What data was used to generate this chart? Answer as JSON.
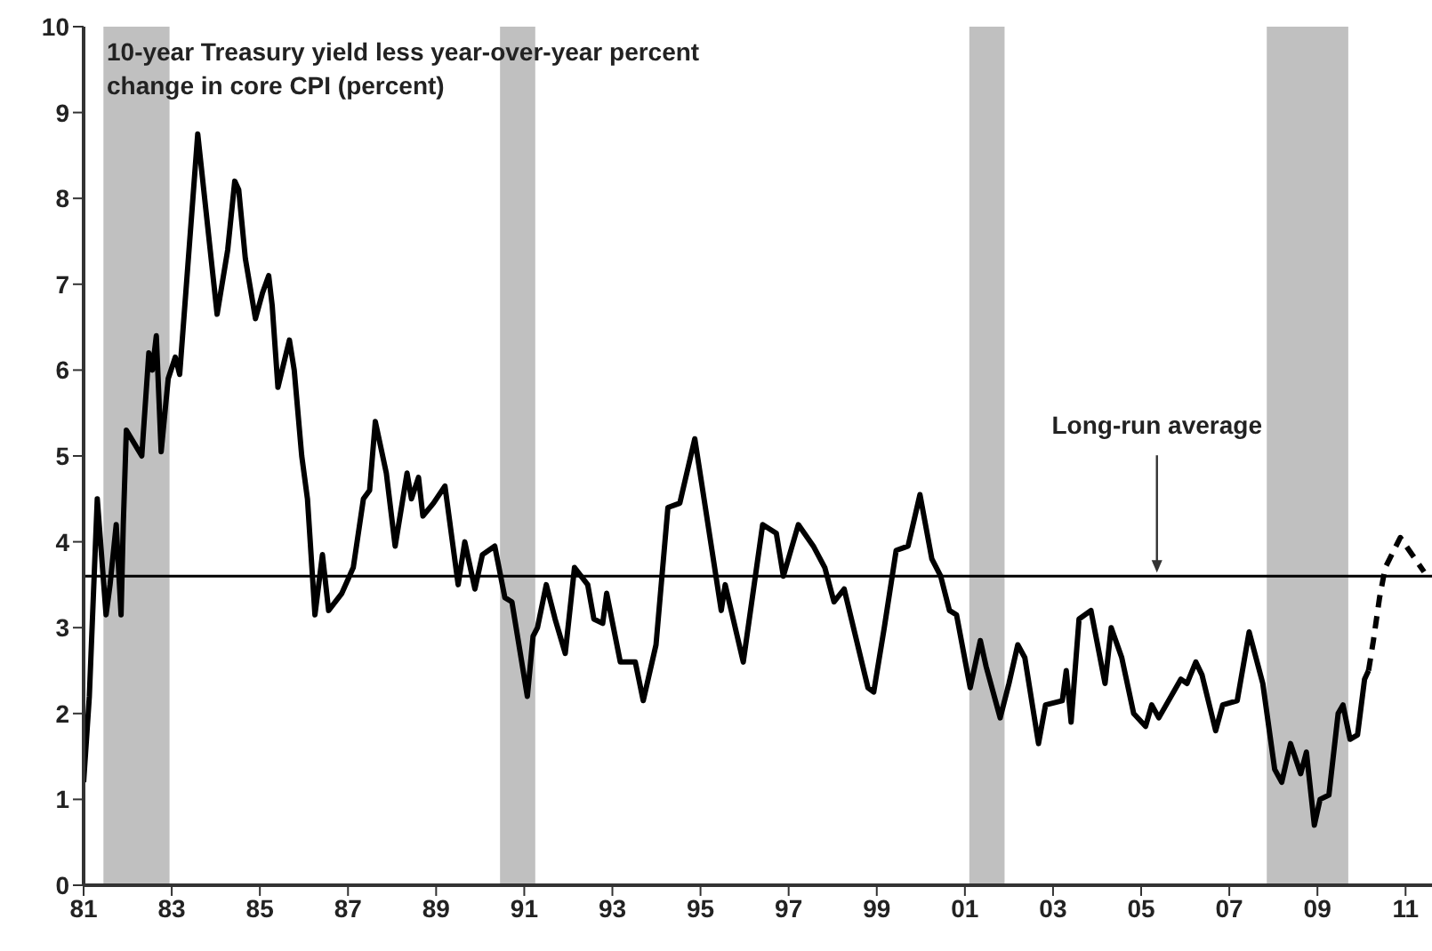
{
  "chart_data": {
    "type": "line",
    "title": "10-year Treasury yield less year-over-year percent change in core CPI (percent)",
    "xlim": [
      1981,
      2011.6
    ],
    "xticks": [
      {
        "value": 1981,
        "label": "81"
      },
      {
        "value": 1983,
        "label": "83"
      },
      {
        "value": 1985,
        "label": "85"
      },
      {
        "value": 1987,
        "label": "87"
      },
      {
        "value": 1989,
        "label": "89"
      },
      {
        "value": 1991,
        "label": "91"
      },
      {
        "value": 1993,
        "label": "93"
      },
      {
        "value": 1995,
        "label": "95"
      },
      {
        "value": 1997,
        "label": "97"
      },
      {
        "value": 1999,
        "label": "99"
      },
      {
        "value": 2001,
        "label": "01"
      },
      {
        "value": 2003,
        "label": "03"
      },
      {
        "value": 2005,
        "label": "05"
      },
      {
        "value": 2007,
        "label": "07"
      },
      {
        "value": 2009,
        "label": "09"
      },
      {
        "value": 2011,
        "label": "11"
      }
    ],
    "ylim": [
      0,
      10
    ],
    "yticks": [
      0,
      1,
      2,
      3,
      4,
      5,
      6,
      7,
      8,
      9,
      10
    ],
    "series": [
      {
        "color": "#000000",
        "line_style": "solid",
        "x": [
          1981.0,
          1981.13,
          1981.31,
          1981.51,
          1981.6,
          1981.74,
          1981.85,
          1981.9,
          1981.97,
          1982.32,
          1982.48,
          1982.56,
          1982.65,
          1982.76,
          1982.92,
          1983.08,
          1983.18,
          1983.59,
          1984.03,
          1984.27,
          1984.43,
          1984.52,
          1984.67,
          1984.9,
          1985.06,
          1985.2,
          1985.28,
          1985.41,
          1985.67,
          1985.78,
          1985.95,
          1986.08,
          1986.25,
          1986.42,
          1986.56,
          1986.86,
          1987.12,
          1987.35,
          1987.49,
          1987.62,
          1987.87,
          1988.07,
          1988.34,
          1988.44,
          1988.6,
          1988.7,
          1988.94,
          1989.2,
          1989.5,
          1989.65,
          1989.88,
          1990.05,
          1990.33,
          1990.56,
          1990.72,
          1991.07,
          1991.2,
          1991.3,
          1991.5,
          1991.7,
          1991.93,
          1992.14,
          1992.44,
          1992.58,
          1992.78,
          1992.87,
          1993.18,
          1993.52,
          1993.7,
          1993.99,
          1994.26,
          1994.53,
          1994.87,
          1995.47,
          1995.56,
          1995.97,
          1996.41,
          1996.72,
          1996.88,
          1997.22,
          1997.56,
          1997.82,
          1998.03,
          1998.26,
          1998.8,
          1998.93,
          1999.17,
          1999.44,
          1999.71,
          1999.98,
          2000.25,
          2000.45,
          2000.65,
          2000.81,
          2001.12,
          2001.35,
          2001.48,
          2001.8,
          2002.0,
          2002.2,
          2002.36,
          2002.67,
          2002.83,
          2003.21,
          2003.3,
          2003.41,
          2003.59,
          2003.86,
          2004.18,
          2004.32,
          2004.56,
          2004.83,
          2005.1,
          2005.24,
          2005.4,
          2005.9,
          2006.04,
          2006.24,
          2006.38,
          2006.69,
          2006.85,
          2007.18,
          2007.45,
          2007.76,
          2008.03,
          2008.19,
          2008.39,
          2008.62,
          2008.75,
          2008.93,
          2009.06,
          2009.26,
          2009.47,
          2009.58,
          2009.74,
          2009.91,
          2010.07,
          2010.16
        ],
        "values": [
          1.2,
          2.2,
          4.5,
          3.15,
          3.5,
          4.2,
          3.15,
          4.2,
          5.3,
          5.0,
          6.2,
          6.0,
          6.4,
          5.05,
          5.9,
          6.15,
          5.95,
          8.75,
          6.65,
          7.4,
          8.2,
          8.1,
          7.3,
          6.6,
          6.9,
          7.1,
          6.75,
          5.8,
          6.35,
          6.0,
          5.0,
          4.5,
          3.15,
          3.85,
          3.2,
          3.4,
          3.7,
          4.5,
          4.6,
          5.4,
          4.8,
          3.95,
          4.8,
          4.5,
          4.75,
          4.3,
          4.45,
          4.65,
          3.5,
          4.0,
          3.45,
          3.85,
          3.95,
          3.35,
          3.3,
          2.2,
          2.9,
          3.0,
          3.5,
          3.1,
          2.7,
          3.7,
          3.5,
          3.1,
          3.05,
          3.4,
          2.6,
          2.6,
          2.15,
          2.8,
          4.4,
          4.45,
          5.2,
          3.2,
          3.5,
          2.6,
          4.2,
          4.1,
          3.6,
          4.2,
          3.95,
          3.7,
          3.3,
          3.45,
          2.3,
          2.25,
          3.0,
          3.9,
          3.95,
          4.55,
          3.8,
          3.6,
          3.2,
          3.15,
          2.3,
          2.85,
          2.55,
          1.95,
          2.35,
          2.8,
          2.65,
          1.65,
          2.1,
          2.15,
          2.5,
          1.9,
          3.1,
          3.2,
          2.35,
          3.0,
          2.65,
          2.0,
          1.85,
          2.1,
          1.95,
          2.4,
          2.35,
          2.6,
          2.45,
          1.8,
          2.1,
          2.15,
          2.95,
          2.35,
          1.35,
          1.2,
          1.65,
          1.3,
          1.55,
          0.7,
          1.0,
          1.05,
          2.0,
          2.1,
          1.7,
          1.75,
          2.4,
          2.5
        ]
      },
      {
        "color": "#000000",
        "line_style": "dashed",
        "x": [
          2010.16,
          2010.27,
          2010.41,
          2010.54,
          2010.88,
          2011.42
        ],
        "values": [
          2.5,
          2.85,
          3.35,
          3.7,
          4.05,
          3.65
        ]
      }
    ],
    "ref_lines": [
      {
        "axis": "y",
        "value": 3.6,
        "label": "Long-run average",
        "color": "#000000"
      }
    ],
    "bands": [
      {
        "axis": "x",
        "from": 1981.45,
        "to": 1982.95,
        "color": "#c0c0c0"
      },
      {
        "axis": "x",
        "from": 1990.45,
        "to": 1991.25,
        "color": "#c0c0c0"
      },
      {
        "axis": "x",
        "from": 2001.1,
        "to": 2001.9,
        "color": "#c0c0c0"
      },
      {
        "axis": "x",
        "from": 2007.85,
        "to": 2009.7,
        "color": "#c0c0c0"
      }
    ]
  }
}
